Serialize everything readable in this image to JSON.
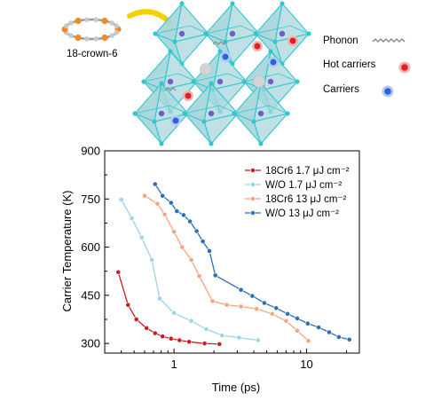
{
  "illustration": {
    "molecule_label": "18-crown-6",
    "legend": [
      {
        "label": "Phonon",
        "icon": "wavy-line-icon",
        "color": "#8a8a8a"
      },
      {
        "label": "Hot carriers",
        "icon": "red-sphere-icon",
        "color": "#e02020"
      },
      {
        "label": "Carriers",
        "icon": "blue-sphere-icon",
        "color": "#2a63e0"
      }
    ],
    "colors": {
      "octahedron_fill": "#a9d7dc",
      "octahedron_edge": "#2fc8cf",
      "oxygen": "#f08a26",
      "carbon": "#c9c9c9",
      "cation": "#d4d4d4",
      "arrow": "#f5d000",
      "halide": "#6a5fc9"
    }
  },
  "chart_data": {
    "type": "line",
    "xscale": "log",
    "xlim": [
      0.3,
      25
    ],
    "ylim": [
      270,
      900
    ],
    "xlabel": "Time (ps)",
    "ylabel": "Carrier Temperature (K)",
    "xticks": [
      1,
      10
    ],
    "xtick_labels": [
      "1",
      "10"
    ],
    "yticks": [
      300,
      450,
      600,
      750,
      900
    ],
    "ytick_labels": [
      "300",
      "450",
      "600",
      "750",
      "900"
    ],
    "legend_position": "top-right",
    "series": [
      {
        "name": "18Cr6 1.7 μJ cm⁻²",
        "color": "#c42121",
        "x": [
          0.38,
          0.45,
          0.52,
          0.62,
          0.72,
          0.82,
          0.95,
          1.1,
          1.3,
          1.7,
          2.2
        ],
        "y": [
          522,
          420,
          375,
          348,
          332,
          322,
          315,
          310,
          305,
          300,
          298
        ]
      },
      {
        "name": "W/O 1.7 μJ cm⁻²",
        "color": "#9fd3e6",
        "x": [
          0.4,
          0.48,
          0.57,
          0.68,
          0.78,
          1.0,
          1.35,
          1.75,
          2.3,
          3.1,
          4.3
        ],
        "y": [
          748,
          690,
          630,
          560,
          440,
          395,
          370,
          345,
          325,
          318,
          310
        ]
      },
      {
        "name": "18Cr6 13 μJ cm⁻²",
        "color": "#f3a582",
        "x": [
          0.6,
          0.75,
          0.85,
          1.0,
          1.15,
          1.35,
          1.55,
          1.95,
          2.5,
          3.2,
          4.2,
          5.5,
          7.0,
          8.5,
          10.3
        ],
        "y": [
          760,
          735,
          702,
          648,
          600,
          560,
          510,
          432,
          420,
          415,
          408,
          392,
          370,
          340,
          308
        ]
      },
      {
        "name": "W/O 13 μJ cm⁻²",
        "color": "#2b6fb8",
        "x": [
          0.72,
          0.82,
          0.95,
          1.05,
          1.18,
          1.32,
          1.48,
          1.65,
          1.85,
          2.05,
          3.2,
          3.9,
          4.8,
          5.9,
          7.2,
          8.5,
          10.2,
          12.3,
          14.8,
          17.5,
          21.0
        ],
        "y": [
          796,
          760,
          738,
          712,
          700,
          680,
          650,
          618,
          588,
          512,
          467,
          448,
          426,
          410,
          392,
          378,
          362,
          350,
          335,
          320,
          312
        ]
      }
    ]
  }
}
